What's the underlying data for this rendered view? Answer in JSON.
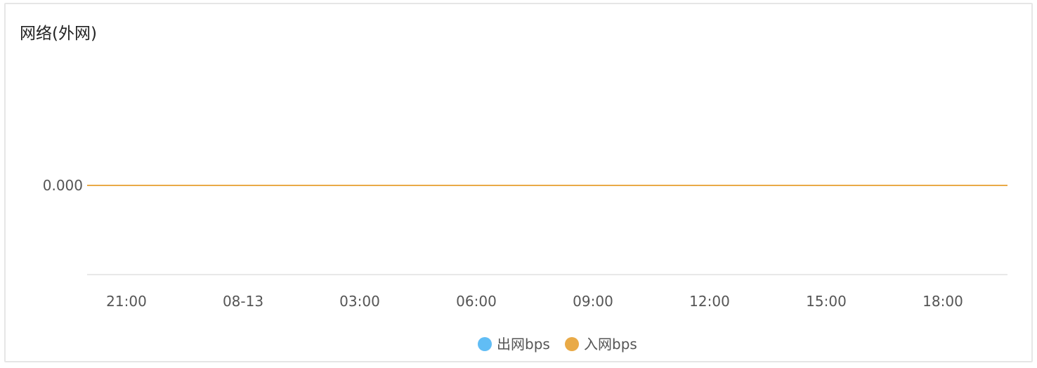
{
  "panel": {
    "title": "网络(外网)"
  },
  "chart_data": {
    "type": "line",
    "title": "网络(外网)",
    "categories": [
      "21:00",
      "08-13",
      "03:00",
      "06:00",
      "09:00",
      "12:00",
      "15:00",
      "18:00"
    ],
    "y_ticks": [
      "0.000"
    ],
    "ylim": [
      -1,
      1
    ],
    "series": [
      {
        "name": "出网bps",
        "color": "#61bdf5",
        "values": [
          0,
          0,
          0,
          0,
          0,
          0,
          0,
          0
        ]
      },
      {
        "name": "入网bps",
        "color": "#e9aa47",
        "values": [
          0,
          0,
          0,
          0,
          0,
          0,
          0,
          0
        ]
      }
    ],
    "grid": false,
    "legend_position": "bottom-center",
    "axis_color": "#e0e0e0"
  }
}
